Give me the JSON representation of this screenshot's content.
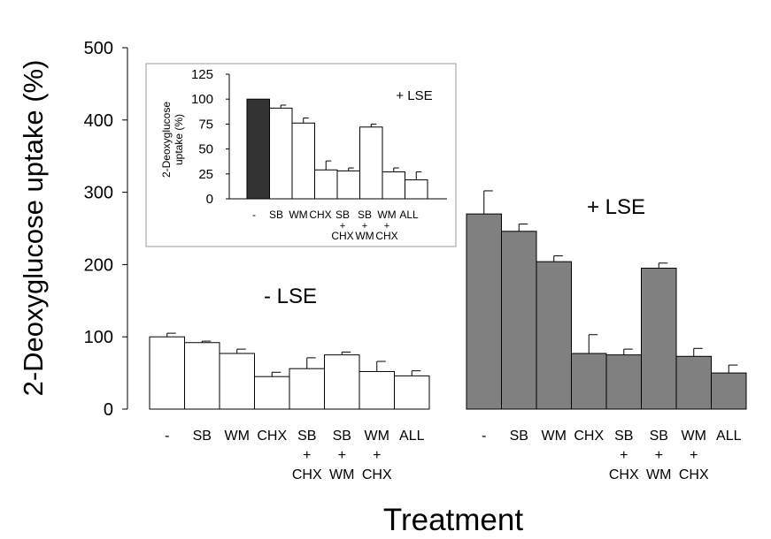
{
  "chart_data": [
    {
      "type": "bar",
      "ylabel": "2-Deoxyglucose uptake (%)",
      "xlabel": "Treatment",
      "ylim": [
        0,
        500
      ],
      "yticks": [
        0,
        100,
        200,
        300,
        400,
        500
      ],
      "categories": [
        "-",
        "SB",
        "WM",
        "CHX",
        "SB + CHX",
        "SB + WM",
        "WM + CHX",
        "ALL"
      ],
      "category_lines": [
        [
          "-"
        ],
        [
          "SB"
        ],
        [
          "WM"
        ],
        [
          "CHX"
        ],
        [
          "SB",
          "+",
          "CHX"
        ],
        [
          "SB",
          "+",
          "WM"
        ],
        [
          "WM",
          "+",
          "CHX"
        ],
        [
          "ALL"
        ]
      ],
      "grid": false,
      "groups": [
        {
          "label": "- LSE",
          "color": "#ffffff",
          "values": [
            100,
            92,
            77,
            45,
            56,
            75,
            52,
            46
          ],
          "errors": [
            5,
            2,
            6,
            6,
            15,
            4,
            14,
            7
          ]
        },
        {
          "label": "+ LSE",
          "color": "#808080",
          "values": [
            270,
            246,
            204,
            77,
            75,
            195,
            73,
            50
          ],
          "errors": [
            32,
            10,
            8,
            26,
            8,
            7,
            11,
            11
          ]
        }
      ]
    },
    {
      "type": "bar",
      "ylabel_lines": [
        "2-Deoxyglucose",
        "uptake (%)"
      ],
      "annotation": "+ LSE",
      "ylim": [
        0,
        125
      ],
      "yticks": [
        0,
        25,
        50,
        75,
        100,
        125
      ],
      "categories": [
        "-",
        "SB",
        "WM",
        "CHX",
        "SB + CHX",
        "SB + WM",
        "WM + CHX",
        "ALL"
      ],
      "category_lines": [
        [
          "-"
        ],
        [
          "SB"
        ],
        [
          "WM"
        ],
        [
          "CHX"
        ],
        [
          "SB",
          "+",
          "CHX"
        ],
        [
          "SB",
          "+",
          "WM"
        ],
        [
          "WM",
          "+",
          "CHX"
        ],
        [
          "ALL"
        ]
      ],
      "values": [
        100,
        91,
        76,
        29,
        28,
        72,
        27,
        19
      ],
      "errors": [
        0,
        3,
        5,
        9,
        3,
        3,
        4,
        8
      ],
      "bar_colors": [
        "#333333",
        "#ffffff",
        "#ffffff",
        "#ffffff",
        "#ffffff",
        "#ffffff",
        "#ffffff",
        "#ffffff"
      ]
    }
  ]
}
